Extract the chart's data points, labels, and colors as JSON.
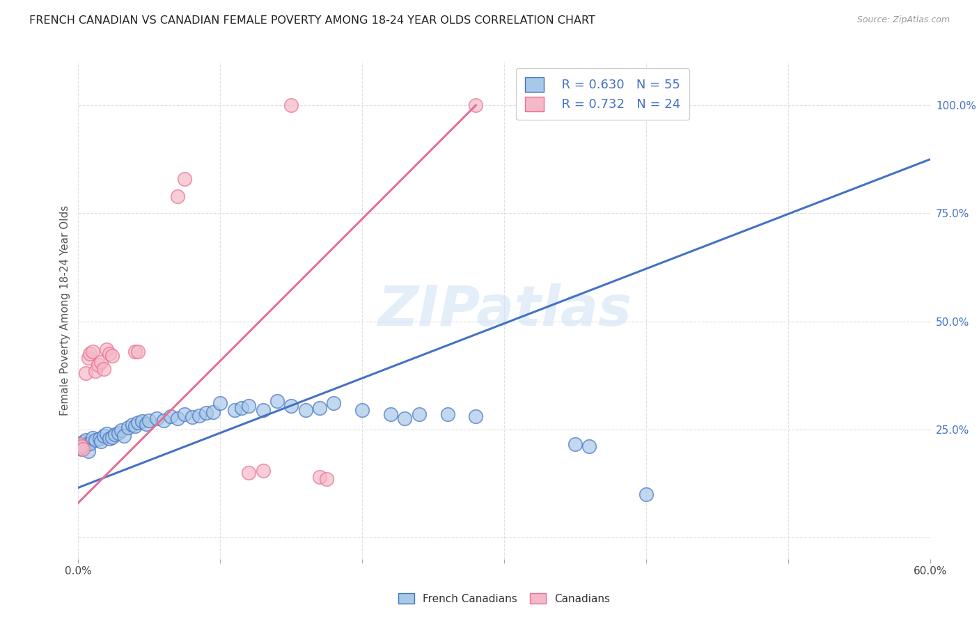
{
  "title": "FRENCH CANADIAN VS CANADIAN FEMALE POVERTY AMONG 18-24 YEAR OLDS CORRELATION CHART",
  "source": "Source: ZipAtlas.com",
  "ylabel": "Female Poverty Among 18-24 Year Olds",
  "xlim": [
    0.0,
    0.6
  ],
  "ylim": [
    -0.05,
    1.1
  ],
  "yticks": [
    0.0,
    0.25,
    0.5,
    0.75,
    1.0
  ],
  "xticks": [
    0.0,
    0.1,
    0.2,
    0.3,
    0.4,
    0.5,
    0.6
  ],
  "watermark": "ZIPatlas",
  "legend_r_blue": "R = 0.630",
  "legend_n_blue": "N = 55",
  "legend_r_pink": "R = 0.732",
  "legend_n_pink": "N = 24",
  "blue_color": "#a8c8e8",
  "pink_color": "#f5b8c8",
  "line_blue": "#4472c4",
  "line_pink": "#e87090",
  "blue_scatter": [
    [
      0.001,
      0.215
    ],
    [
      0.002,
      0.205
    ],
    [
      0.003,
      0.22
    ],
    [
      0.004,
      0.21
    ],
    [
      0.005,
      0.225
    ],
    [
      0.006,
      0.215
    ],
    [
      0.007,
      0.2
    ],
    [
      0.008,
      0.218
    ],
    [
      0.01,
      0.23
    ],
    [
      0.012,
      0.225
    ],
    [
      0.015,
      0.228
    ],
    [
      0.016,
      0.222
    ],
    [
      0.018,
      0.235
    ],
    [
      0.02,
      0.24
    ],
    [
      0.022,
      0.228
    ],
    [
      0.024,
      0.232
    ],
    [
      0.026,
      0.238
    ],
    [
      0.028,
      0.242
    ],
    [
      0.03,
      0.248
    ],
    [
      0.032,
      0.235
    ],
    [
      0.035,
      0.255
    ],
    [
      0.038,
      0.26
    ],
    [
      0.04,
      0.258
    ],
    [
      0.042,
      0.265
    ],
    [
      0.045,
      0.268
    ],
    [
      0.048,
      0.262
    ],
    [
      0.05,
      0.27
    ],
    [
      0.055,
      0.275
    ],
    [
      0.06,
      0.27
    ],
    [
      0.065,
      0.28
    ],
    [
      0.07,
      0.275
    ],
    [
      0.075,
      0.285
    ],
    [
      0.08,
      0.278
    ],
    [
      0.085,
      0.282
    ],
    [
      0.09,
      0.288
    ],
    [
      0.095,
      0.29
    ],
    [
      0.1,
      0.31
    ],
    [
      0.11,
      0.295
    ],
    [
      0.115,
      0.3
    ],
    [
      0.12,
      0.305
    ],
    [
      0.13,
      0.295
    ],
    [
      0.14,
      0.315
    ],
    [
      0.15,
      0.305
    ],
    [
      0.16,
      0.295
    ],
    [
      0.17,
      0.3
    ],
    [
      0.18,
      0.31
    ],
    [
      0.2,
      0.295
    ],
    [
      0.22,
      0.285
    ],
    [
      0.23,
      0.275
    ],
    [
      0.24,
      0.285
    ],
    [
      0.26,
      0.285
    ],
    [
      0.28,
      0.28
    ],
    [
      0.35,
      0.215
    ],
    [
      0.36,
      0.21
    ],
    [
      0.4,
      0.1
    ]
  ],
  "pink_scatter": [
    [
      0.001,
      0.215
    ],
    [
      0.002,
      0.21
    ],
    [
      0.003,
      0.205
    ],
    [
      0.005,
      0.38
    ],
    [
      0.007,
      0.415
    ],
    [
      0.008,
      0.425
    ],
    [
      0.01,
      0.43
    ],
    [
      0.012,
      0.385
    ],
    [
      0.014,
      0.4
    ],
    [
      0.016,
      0.405
    ],
    [
      0.018,
      0.39
    ],
    [
      0.02,
      0.435
    ],
    [
      0.022,
      0.425
    ],
    [
      0.024,
      0.42
    ],
    [
      0.04,
      0.43
    ],
    [
      0.042,
      0.43
    ],
    [
      0.07,
      0.79
    ],
    [
      0.075,
      0.83
    ],
    [
      0.12,
      0.15
    ],
    [
      0.13,
      0.155
    ],
    [
      0.15,
      1.0
    ],
    [
      0.17,
      0.14
    ],
    [
      0.175,
      0.135
    ],
    [
      0.28,
      1.0
    ]
  ],
  "blue_line": [
    [
      0.0,
      0.115
    ],
    [
      0.6,
      0.875
    ]
  ],
  "pink_line": [
    [
      0.0,
      0.08
    ],
    [
      0.28,
      1.0
    ]
  ]
}
